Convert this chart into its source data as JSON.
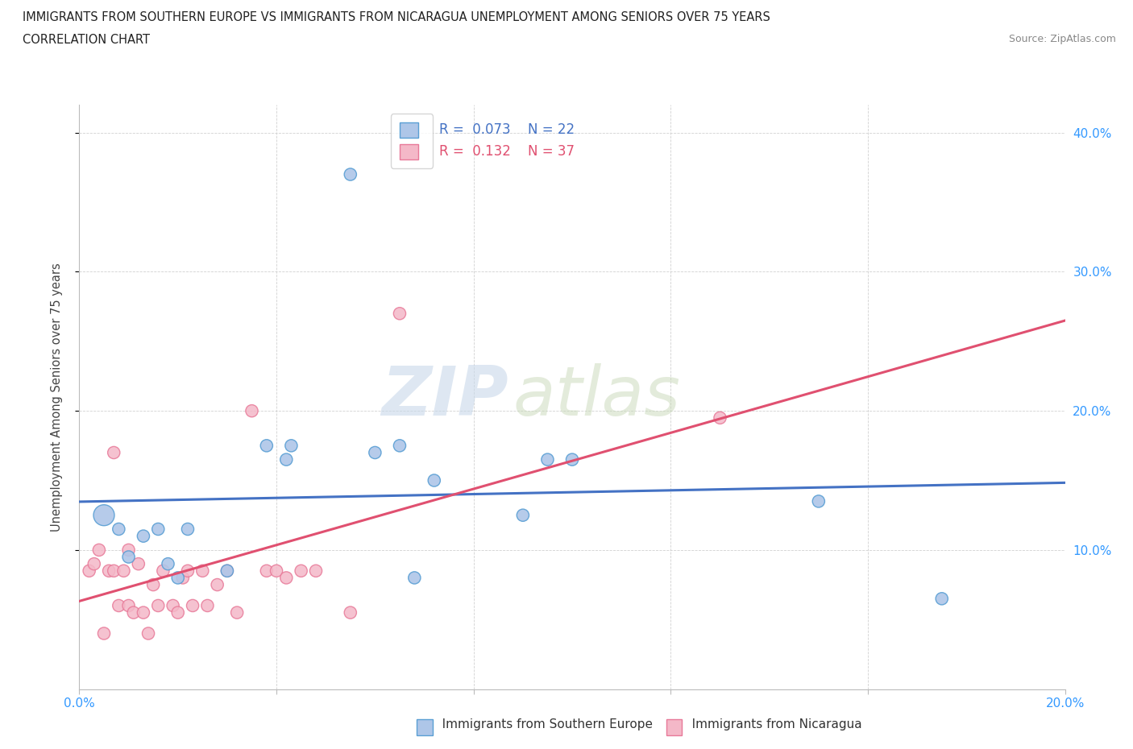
{
  "title_line1": "IMMIGRANTS FROM SOUTHERN EUROPE VS IMMIGRANTS FROM NICARAGUA UNEMPLOYMENT AMONG SENIORS OVER 75 YEARS",
  "title_line2": "CORRELATION CHART",
  "source_text": "Source: ZipAtlas.com",
  "ylabel": "Unemployment Among Seniors over 75 years",
  "xlim": [
    0.0,
    0.2
  ],
  "ylim": [
    0.0,
    0.42
  ],
  "xticks": [
    0.0,
    0.04,
    0.08,
    0.12,
    0.16,
    0.2
  ],
  "yticks": [
    0.1,
    0.2,
    0.3,
    0.4
  ],
  "ytick_labels": [
    "10.0%",
    "20.0%",
    "30.0%",
    "40.0%"
  ],
  "xtick_labels": [
    "0.0%",
    "",
    "",
    "",
    "",
    "20.0%"
  ],
  "legend_r1": "R =  0.073",
  "legend_n1": "N = 22",
  "legend_r2": "R =  0.132",
  "legend_n2": "N = 37",
  "color_blue": "#aec6e8",
  "color_pink": "#f4b8c8",
  "color_blue_edge": "#5a9fd4",
  "color_pink_edge": "#e87a99",
  "color_blue_line": "#4472c4",
  "color_pink_line": "#e05070",
  "watermark_zip": "ZIP",
  "watermark_atlas": "atlas",
  "blue_scatter_x": [
    0.005,
    0.008,
    0.01,
    0.013,
    0.016,
    0.018,
    0.02,
    0.022,
    0.03,
    0.038,
    0.042,
    0.043,
    0.055,
    0.06,
    0.065,
    0.068,
    0.072,
    0.09,
    0.095,
    0.1,
    0.15,
    0.175
  ],
  "blue_scatter_y": [
    0.125,
    0.115,
    0.095,
    0.11,
    0.115,
    0.09,
    0.08,
    0.115,
    0.085,
    0.175,
    0.165,
    0.175,
    0.37,
    0.17,
    0.175,
    0.08,
    0.15,
    0.125,
    0.165,
    0.165,
    0.135,
    0.065
  ],
  "blue_scatter_sizes": [
    350,
    120,
    120,
    120,
    120,
    120,
    120,
    120,
    120,
    120,
    120,
    120,
    120,
    120,
    120,
    120,
    120,
    120,
    120,
    120,
    120,
    120
  ],
  "pink_scatter_x": [
    0.002,
    0.003,
    0.004,
    0.005,
    0.006,
    0.007,
    0.007,
    0.008,
    0.009,
    0.01,
    0.01,
    0.011,
    0.012,
    0.013,
    0.014,
    0.015,
    0.016,
    0.017,
    0.019,
    0.02,
    0.021,
    0.022,
    0.023,
    0.025,
    0.026,
    0.028,
    0.03,
    0.032,
    0.035,
    0.038,
    0.04,
    0.042,
    0.045,
    0.048,
    0.055,
    0.065,
    0.13
  ],
  "pink_scatter_y": [
    0.085,
    0.09,
    0.1,
    0.04,
    0.085,
    0.085,
    0.17,
    0.06,
    0.085,
    0.1,
    0.06,
    0.055,
    0.09,
    0.055,
    0.04,
    0.075,
    0.06,
    0.085,
    0.06,
    0.055,
    0.08,
    0.085,
    0.06,
    0.085,
    0.06,
    0.075,
    0.085,
    0.055,
    0.2,
    0.085,
    0.085,
    0.08,
    0.085,
    0.085,
    0.055,
    0.27,
    0.195
  ],
  "pink_scatter_sizes": [
    120,
    120,
    120,
    120,
    120,
    120,
    120,
    120,
    120,
    120,
    120,
    120,
    120,
    120,
    120,
    120,
    120,
    120,
    120,
    120,
    120,
    120,
    120,
    120,
    120,
    120,
    120,
    120,
    120,
    120,
    120,
    120,
    120,
    120,
    120,
    120,
    120
  ]
}
